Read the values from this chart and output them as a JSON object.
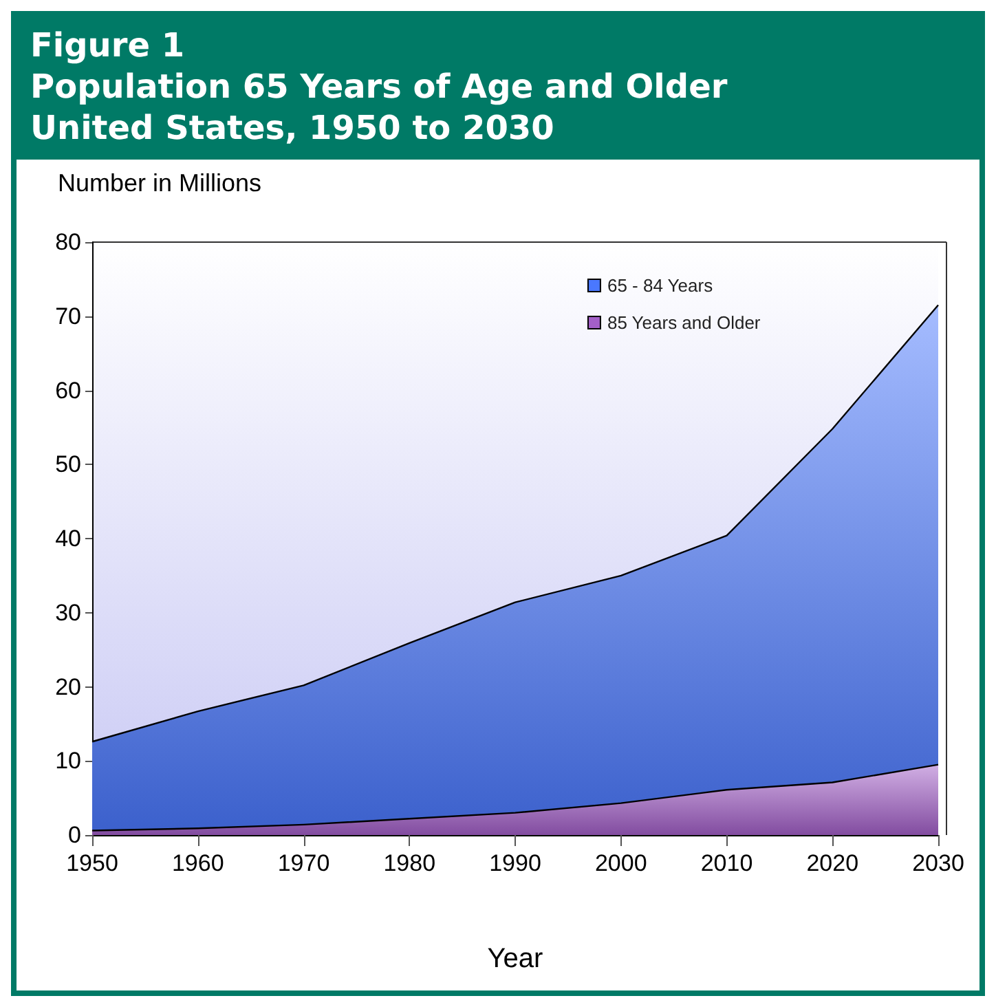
{
  "chart_data": {
    "type": "area",
    "title": "Figure 1\nPopulation 65 Years of Age and Older\nUnited States, 1950 to 2030",
    "xlabel": "Year",
    "ylabel": "Number in Millions",
    "x": [
      1950,
      1960,
      1970,
      1980,
      1990,
      2000,
      2010,
      2020,
      2030
    ],
    "series": [
      {
        "name": "85 Years and Older",
        "color": "#a35fc8",
        "values": [
          0.6,
          0.9,
          1.4,
          2.2,
          3.0,
          4.3,
          6.1,
          7.1,
          9.5
        ]
      },
      {
        "name": "65 - 84 Years",
        "color": "#4a78ff",
        "values": [
          12.0,
          15.8,
          18.8,
          23.7,
          28.4,
          30.7,
          34.3,
          47.7,
          62.0
        ]
      }
    ],
    "stacked": true,
    "xlim": [
      1950,
      2030
    ],
    "xticks": [
      1950,
      1960,
      1970,
      1980,
      1990,
      2000,
      2010,
      2020,
      2030
    ],
    "ylim": [
      0,
      80
    ],
    "yticks": [
      0,
      10,
      20,
      30,
      40,
      50,
      60,
      70,
      80
    ],
    "grid": false,
    "legend": "top right"
  }
}
